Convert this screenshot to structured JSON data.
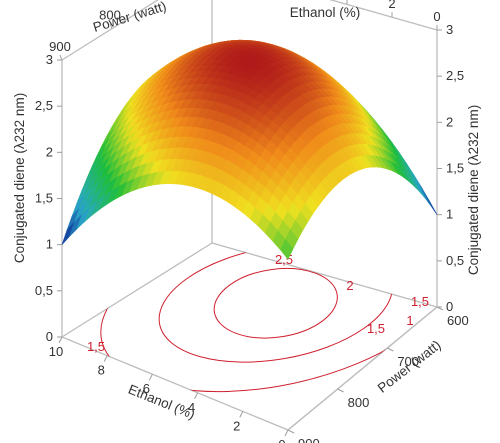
{
  "chart_data": {
    "type": "surface",
    "z_axis": {
      "label": "Conjugated diene (λ232 nm)",
      "range": [
        0,
        3
      ],
      "ticks": [
        "0",
        "0,5",
        "1",
        "1,5",
        "2",
        "2,5",
        "3"
      ]
    },
    "ethanol_axis": {
      "label": "Ethanol (%)",
      "range": [
        0,
        10
      ],
      "ticks": [
        "10",
        "8",
        "6",
        "4",
        "2",
        "0"
      ]
    },
    "power_axis": {
      "label": "Power (watt)",
      "range": [
        600,
        900
      ],
      "ticks": [
        "600",
        "700",
        "800",
        "900"
      ]
    },
    "surface": {
      "center": {
        "ethanol": 5,
        "power": 750,
        "value": 2.9
      },
      "corners": [
        {
          "ethanol": 10,
          "power": 900,
          "value": 1.0
        },
        {
          "ethanol": 0,
          "power": 600,
          "value": 1.0
        },
        {
          "ethanol": 10,
          "power": 600,
          "value": 1.85
        },
        {
          "ethanol": 0,
          "power": 900,
          "value": 1.85
        }
      ],
      "colors": [
        "#0a1a8f",
        "#2aa8c8",
        "#1ebe3a",
        "#f0e020",
        "#f08a1a",
        "#b01a1a"
      ]
    },
    "contour_levels": [
      "2,5",
      "2",
      "1,5",
      "1",
      "1,5",
      "1,5"
    ]
  }
}
